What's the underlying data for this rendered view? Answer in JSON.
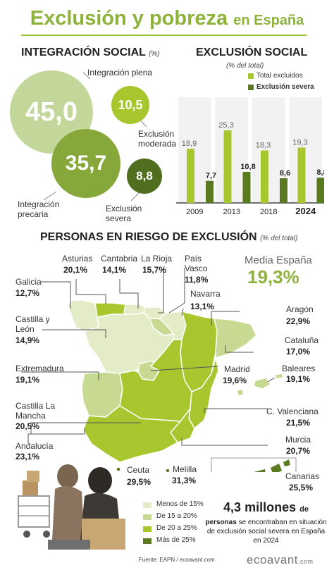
{
  "title": {
    "main": "Exclusión y pobreza",
    "sub": "en España"
  },
  "integracion": {
    "heading": "INTEGRACIÓN SOCIAL",
    "unit": "(%)",
    "items": [
      {
        "label": "Integración plena",
        "value": "45,0"
      },
      {
        "label": "Integración precaria",
        "value": "35,7"
      },
      {
        "label": "Exclusión moderada",
        "value": "10,5"
      },
      {
        "label": "Exclusión severa",
        "value": "8,8"
      }
    ]
  },
  "exclusion": {
    "heading": "EXCLUSIÓN SOCIAL",
    "unit": "(% del total)",
    "legend": [
      "Total excluidos",
      "Exclusión severa"
    ]
  },
  "chart_data": {
    "type": "bar",
    "title": "EXCLUSIÓN SOCIAL",
    "categories": [
      "2009",
      "2013",
      "2018",
      "2024"
    ],
    "series": [
      {
        "name": "Total excluidos",
        "values": [
          18.9,
          25.3,
          18.3,
          19.3
        ],
        "labels": [
          "18,9",
          "25,3",
          "18,3",
          "19,3"
        ],
        "color": "#a8c72e"
      },
      {
        "name": "Exclusión severa",
        "values": [
          7.7,
          10.8,
          8.6,
          8.8
        ],
        "labels": [
          "7,7",
          "10,8",
          "8,6",
          "8,8"
        ],
        "color": "#5a7a1f"
      }
    ],
    "ylim": [
      0,
      30
    ],
    "legend": "top-right"
  },
  "riesgo": {
    "heading": "PERSONAS EN RIESGO DE EXCLUSIÓN",
    "unit": "(% del total)",
    "media_label": "Media España",
    "media_value": "19,3%",
    "regions": [
      {
        "id": "asturias",
        "name": "Asturias",
        "value": "20,1%"
      },
      {
        "id": "cantabria",
        "name": "Cantabria",
        "value": "14,1%"
      },
      {
        "id": "rioja",
        "name": "La Rioja",
        "value": "15,7%"
      },
      {
        "id": "pvasco",
        "name": "País Vasco",
        "value": "11,8%"
      },
      {
        "id": "navarra",
        "name": "Navarra",
        "value": "13,1%"
      },
      {
        "id": "galicia",
        "name": "Galicia",
        "value": "12,7%"
      },
      {
        "id": "aragon",
        "name": "Aragón",
        "value": "22,9%"
      },
      {
        "id": "cyl",
        "name": "Castilla y León",
        "value": "14,9%"
      },
      {
        "id": "cataluna",
        "name": "Cataluña",
        "value": "17,0%"
      },
      {
        "id": "extremadura",
        "name": "Extremadura",
        "value": "19,1%"
      },
      {
        "id": "madrid",
        "name": "Madrid",
        "value": "19,6%"
      },
      {
        "id": "baleares",
        "name": "Baleares",
        "value": "19,1%"
      },
      {
        "id": "clm",
        "name": "Castilla La Mancha",
        "value": "20,5%"
      },
      {
        "id": "valenciana",
        "name": "C. Valenciana",
        "value": "21,5%"
      },
      {
        "id": "andalucia",
        "name": "Andalucía",
        "value": "23,1%"
      },
      {
        "id": "murcia",
        "name": "Murcia",
        "value": "20,7%"
      },
      {
        "id": "ceuta",
        "name": "Ceuta",
        "value": "29,5%"
      },
      {
        "id": "melilla",
        "name": "Melilla",
        "value": "31,3%"
      },
      {
        "id": "canarias",
        "name": "Canarias",
        "value": "25,5%"
      }
    ],
    "legend": [
      {
        "label": "Menos de 15%",
        "color": "#e3ebc7"
      },
      {
        "label": "De 15 a 20%",
        "color": "#c8da92"
      },
      {
        "label": "De 20 a 25%",
        "color": "#a8c72e"
      },
      {
        "label": "Más de 25%",
        "color": "#5a7a1f"
      }
    ]
  },
  "highlight": {
    "big": "4,3 millones",
    "de": "de",
    "personas": "personas",
    "rest": "se encontraban en situación de exclusión social severa en España en 2024"
  },
  "source": "Fuente:  EAPN / ecoavant.com",
  "brand": "ecoavant",
  "brand_suffix": ".com"
}
